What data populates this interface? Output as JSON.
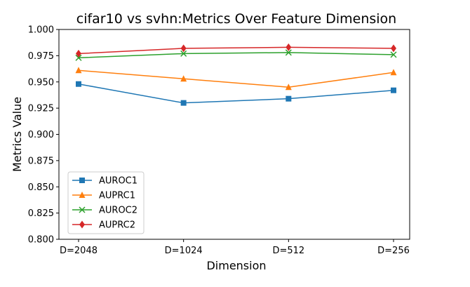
{
  "chart_data": {
    "type": "line",
    "title": "cifar10 vs svhn:Metrics Over Feature Dimension",
    "xlabel": "Dimension",
    "ylabel": "Metrics Value",
    "categories": [
      "D=2048",
      "D=1024",
      "D=512",
      "D=256"
    ],
    "ylim": [
      0.8,
      1.0
    ],
    "yticks": [
      "0.800",
      "0.825",
      "0.850",
      "0.875",
      "0.900",
      "0.925",
      "0.950",
      "0.975",
      "1.000"
    ],
    "grid": false,
    "legend_position": "lower-left",
    "series": [
      {
        "name": "AUROC1",
        "values": [
          0.948,
          0.93,
          0.934,
          0.942
        ],
        "color": "#1f77b4",
        "marker": "square"
      },
      {
        "name": "AUPRC1",
        "values": [
          0.961,
          0.953,
          0.945,
          0.959
        ],
        "color": "#ff7f0e",
        "marker": "triangle"
      },
      {
        "name": "AUROC2",
        "values": [
          0.973,
          0.977,
          0.978,
          0.976
        ],
        "color": "#2ca02c",
        "marker": "x"
      },
      {
        "name": "AUPRC2",
        "values": [
          0.977,
          0.982,
          0.983,
          0.982
        ],
        "color": "#d62728",
        "marker": "diamond"
      }
    ]
  }
}
